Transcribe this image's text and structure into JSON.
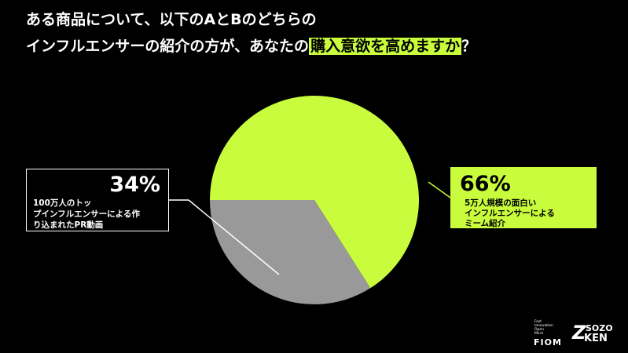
{
  "chart_data": {
    "type": "pie",
    "title": [
      "ある商品について、以下のAとBのどちらの",
      "インフルエンサーの紹介の方が、あなたの",
      "購入意欲を高めますか",
      "？"
    ],
    "categories": [
      [
        "5万人規模の面白い",
        "インフルエンサーによる",
        "ミーム紹介"
      ],
      [
        "100万人のトッ",
        "プインフルエンサーによる作",
        "り込まれたPR動画"
      ]
    ],
    "values": [
      66,
      34
    ],
    "value_labels": [
      "66%",
      "34%"
    ],
    "colors": [
      "#c8fc3c",
      "#999999"
    ]
  },
  "logos": {
    "fiom_small": [
      "Fast",
      "Innovation",
      "Open",
      "Mind"
    ],
    "fiom": "FIOM",
    "sozo": "SOZO",
    "ken": "KEN",
    "z": "Z"
  }
}
